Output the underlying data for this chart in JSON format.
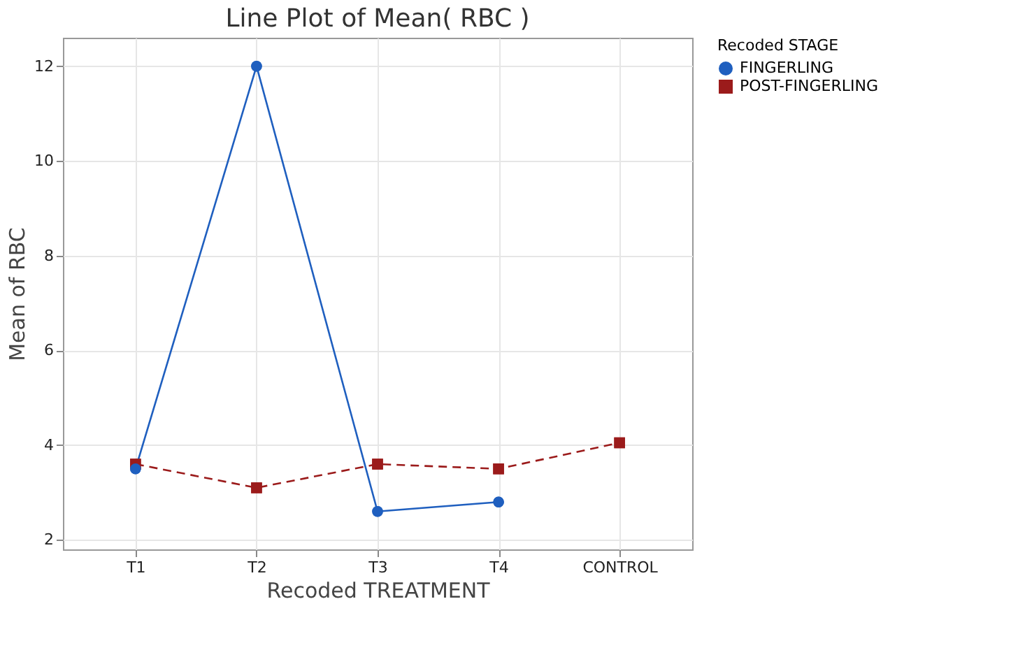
{
  "chart_data": {
    "type": "line",
    "title": "Line Plot of Mean( RBC )",
    "xlabel": "Recoded TREATMENT",
    "ylabel": "Mean of RBC",
    "legend_title": "Recoded STAGE",
    "categories": [
      "T1",
      "T2",
      "T3",
      "T4",
      "CONTROL"
    ],
    "series": [
      {
        "name": "FINGERLING",
        "color": "#1f5fbf",
        "marker": "circle",
        "line_style": "solid",
        "values": [
          3.5,
          12.0,
          2.6,
          2.8,
          null
        ]
      },
      {
        "name": "POST-FINGERLING",
        "color": "#9b1b1b",
        "marker": "square",
        "line_style": "dashed",
        "values": [
          3.6,
          3.1,
          3.6,
          3.5,
          4.05
        ]
      }
    ],
    "ylim": [
      1.8,
      12.6
    ],
    "yticks": [
      2,
      4,
      6,
      8,
      10,
      12
    ],
    "grid": true,
    "legend": "top right"
  }
}
